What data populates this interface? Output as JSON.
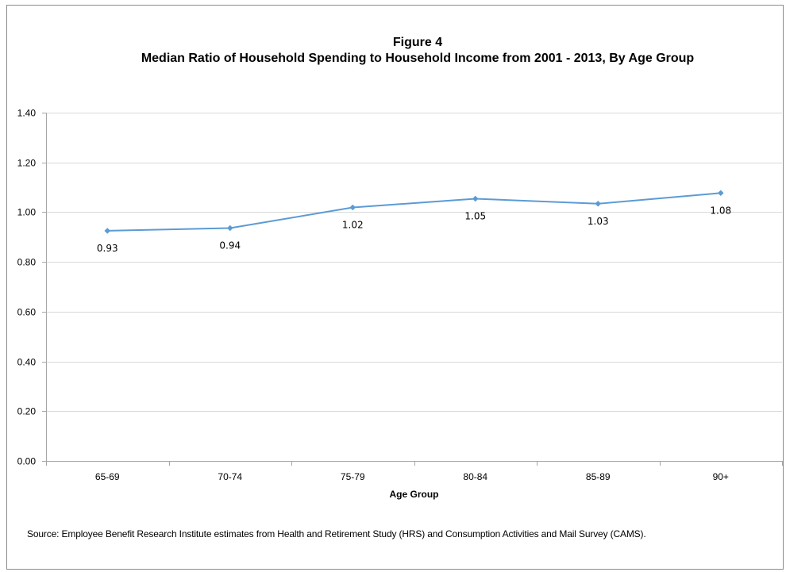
{
  "chart_data": {
    "type": "line",
    "title": "Figure 4",
    "subtitle": "Median Ratio of Household Spending to Household Income from 2001 - 2013, By Age Group",
    "xlabel": "Age Group",
    "ylabel": "",
    "categories": [
      "65-69",
      "70-74",
      "75-79",
      "80-84",
      "85-89",
      "90+"
    ],
    "series": [
      {
        "values": [
          0.925,
          0.936,
          1.019,
          1.054,
          1.034,
          1.077
        ],
        "data_labels": [
          "0.93",
          "0.94",
          "1.02",
          "1.05",
          "1.03",
          "1.08"
        ],
        "color": "#5b9bd5"
      }
    ],
    "ylim": [
      0,
      1.4
    ],
    "yticks": [
      "0.00",
      "0.20",
      "0.40",
      "0.60",
      "0.80",
      "1.00",
      "1.20",
      "1.40"
    ],
    "grid": true,
    "legend": "none",
    "gridline_color": "#d9d9d9",
    "axis_color": "#a6a6a6"
  },
  "source": "Source: Employee Benefit Research Institute estimates from Health and Retirement Study (HRS) and Consumption Activities and Mail Survey (CAMS)."
}
